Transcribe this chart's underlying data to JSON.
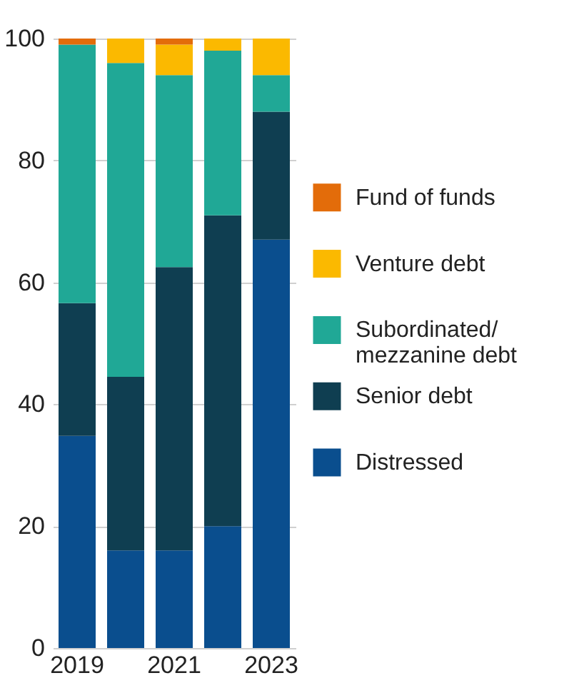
{
  "chart_data": {
    "type": "bar",
    "stacked": true,
    "categories": [
      "2019",
      null,
      "2021",
      null,
      "2023"
    ],
    "series": [
      {
        "name": "Distressed",
        "color": "#0a4e8e",
        "values": [
          34.8,
          16,
          16,
          20,
          67
        ]
      },
      {
        "name": "Senior debt",
        "color": "#0f3e51",
        "values": [
          21.8,
          28.5,
          46.5,
          51,
          21
        ]
      },
      {
        "name": "Subordinated/ mezzanine debt",
        "color": "#20a896",
        "values": [
          42.4,
          51.5,
          31.5,
          27,
          6
        ]
      },
      {
        "name": "Venture debt",
        "color": "#fbb900",
        "values": [
          0,
          4,
          5,
          2,
          6
        ]
      },
      {
        "name": "Fund of funds",
        "color": "#e36c0a",
        "values": [
          1,
          0,
          1,
          0,
          0
        ]
      }
    ],
    "ylim": [
      0,
      100
    ],
    "yticks": [
      0,
      20,
      40,
      60,
      80,
      100
    ],
    "grid": "y",
    "legend": "right"
  }
}
